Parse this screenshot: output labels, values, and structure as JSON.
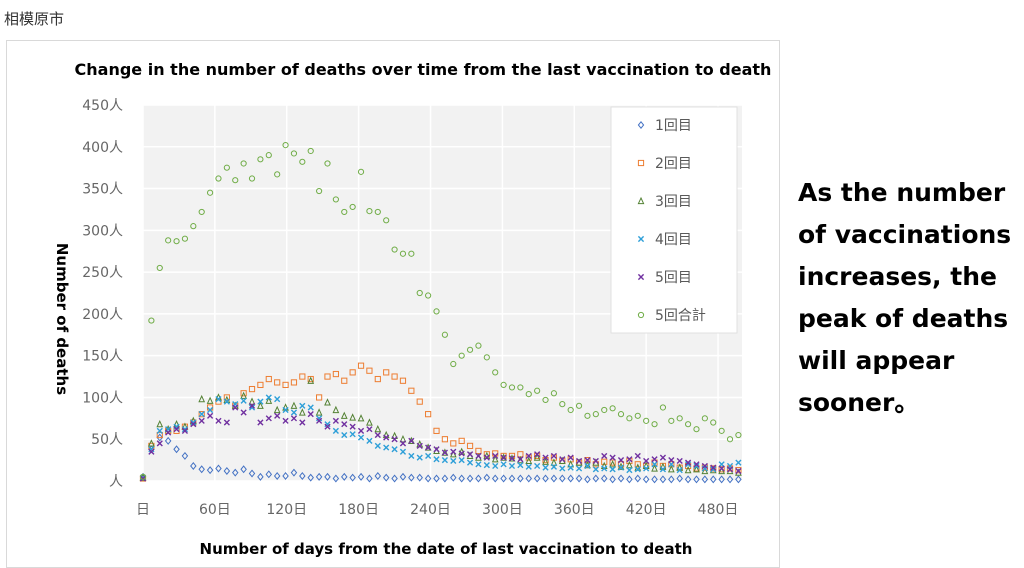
{
  "source_label": "相模原市",
  "note_lines": [
    "As the number",
    "of vaccinations",
    "increases, the",
    "peak of deaths",
    "will appear",
    "sooner。"
  ],
  "chart_data": {
    "type": "scatter",
    "title": "Change in the number of deaths over time from the last vaccination to death",
    "xlabel": "Number of days from the date of last vaccination to death",
    "ylabel": "Number of deaths",
    "xlim": [
      0,
      500
    ],
    "ylim": [
      0,
      450
    ],
    "grid": true,
    "legend_position": "top-right",
    "x_ticks": [
      0,
      60,
      120,
      180,
      240,
      300,
      360,
      420,
      480
    ],
    "x_tick_labels": [
      "日",
      "60日",
      "120日",
      "180日",
      "240日",
      "300日",
      "360日",
      "420日",
      "480日"
    ],
    "y_ticks": [
      0,
      50,
      100,
      150,
      200,
      250,
      300,
      350,
      400,
      450
    ],
    "y_tick_labels": [
      "人",
      "50人",
      "100人",
      "150人",
      "200人",
      "250人",
      "300人",
      "350人",
      "400人",
      "450人"
    ],
    "x": [
      0,
      7,
      14,
      21,
      28,
      35,
      42,
      49,
      56,
      63,
      70,
      77,
      84,
      91,
      98,
      105,
      112,
      119,
      126,
      133,
      140,
      147,
      154,
      161,
      168,
      175,
      182,
      189,
      196,
      203,
      210,
      217,
      224,
      231,
      238,
      245,
      252,
      259,
      266,
      273,
      280,
      287,
      294,
      301,
      308,
      315,
      322,
      329,
      336,
      343,
      350,
      357,
      364,
      371,
      378,
      385,
      392,
      399,
      406,
      413,
      420,
      427,
      434,
      441,
      448,
      455,
      462,
      469,
      476,
      483,
      490,
      497
    ],
    "series": [
      {
        "name": "1回目",
        "marker": "diamond",
        "color": "#4472c4",
        "values": [
          5,
          38,
          52,
          48,
          38,
          30,
          18,
          14,
          13,
          15,
          12,
          10,
          14,
          9,
          5,
          8,
          6,
          6,
          10,
          6,
          4,
          5,
          5,
          3,
          5,
          4,
          5,
          3,
          6,
          4,
          3,
          5,
          4,
          4,
          3,
          3,
          3,
          4,
          3,
          3,
          3,
          4,
          3,
          3,
          3,
          3,
          3,
          3,
          3,
          3,
          3,
          3,
          3,
          2,
          3,
          3,
          2,
          3,
          2,
          3,
          2,
          2,
          2,
          2,
          3,
          2,
          2,
          2,
          2,
          2,
          2,
          2
        ]
      },
      {
        "name": "2回目",
        "marker": "square",
        "color": "#ed7d31",
        "values": [
          3,
          42,
          55,
          60,
          60,
          65,
          70,
          80,
          88,
          95,
          100,
          90,
          105,
          110,
          115,
          122,
          118,
          115,
          118,
          125,
          122,
          100,
          125,
          128,
          120,
          130,
          138,
          132,
          122,
          130,
          125,
          120,
          108,
          95,
          80,
          60,
          50,
          45,
          48,
          42,
          36,
          32,
          33,
          30,
          30,
          32,
          28,
          30,
          25,
          28,
          24,
          26,
          22,
          25,
          20,
          23,
          22,
          20,
          24,
          20,
          18,
          22,
          18,
          20,
          16,
          18,
          15,
          16,
          15,
          14,
          15,
          13
        ]
      },
      {
        "name": "3回目",
        "marker": "triangle",
        "color": "#548235",
        "values": [
          4,
          45,
          68,
          62,
          68,
          65,
          72,
          98,
          96,
          100,
          97,
          90,
          102,
          95,
          90,
          96,
          85,
          88,
          90,
          82,
          120,
          82,
          94,
          85,
          78,
          76,
          75,
          70,
          62,
          55,
          54,
          50,
          48,
          44,
          40,
          36,
          34,
          32,
          35,
          30,
          28,
          30,
          26,
          28,
          27,
          25,
          24,
          28,
          23,
          22,
          24,
          20,
          22,
          19,
          22,
          18,
          20,
          17,
          19,
          16,
          18,
          15,
          17,
          14,
          16,
          13,
          14,
          12,
          13,
          12,
          12,
          10
        ]
      },
      {
        "name": "4回目",
        "marker": "x",
        "color": "#2e9fd8",
        "values": [
          4,
          38,
          60,
          62,
          65,
          62,
          70,
          80,
          85,
          98,
          95,
          92,
          96,
          88,
          95,
          100,
          98,
          85,
          82,
          90,
          88,
          75,
          68,
          60,
          55,
          56,
          52,
          48,
          42,
          40,
          38,
          35,
          30,
          28,
          30,
          26,
          25,
          24,
          25,
          22,
          20,
          19,
          18,
          20,
          18,
          19,
          17,
          18,
          16,
          17,
          15,
          16,
          15,
          18,
          14,
          15,
          14,
          16,
          13,
          14,
          15,
          20,
          14,
          20,
          13,
          20,
          18,
          15,
          14,
          20,
          18,
          22
        ]
      },
      {
        "name": "5回目",
        "marker": "x",
        "color": "#7030a0",
        "values": [
          3,
          35,
          45,
          58,
          62,
          60,
          68,
          72,
          78,
          72,
          70,
          88,
          82,
          90,
          70,
          75,
          78,
          72,
          75,
          70,
          80,
          72,
          65,
          72,
          68,
          65,
          60,
          62,
          55,
          52,
          50,
          45,
          48,
          42,
          40,
          38,
          34,
          35,
          33,
          32,
          30,
          28,
          30,
          28,
          27,
          26,
          30,
          32,
          28,
          30,
          26,
          28,
          24,
          25,
          24,
          30,
          28,
          25,
          26,
          30,
          24,
          26,
          28,
          25,
          24,
          22,
          20,
          18,
          16,
          15,
          14,
          12
        ]
      },
      {
        "name": "5回合計",
        "marker": "circle",
        "color": "#70ad47",
        "values": [
          5,
          192,
          255,
          288,
          287,
          290,
          305,
          322,
          345,
          362,
          375,
          360,
          380,
          362,
          385,
          390,
          367,
          402,
          392,
          382,
          395,
          347,
          380,
          337,
          322,
          328,
          370,
          323,
          322,
          312,
          277,
          272,
          272,
          225,
          222,
          203,
          175,
          140,
          150,
          157,
          162,
          148,
          130,
          115,
          112,
          112,
          104,
          108,
          97,
          105,
          92,
          85,
          90,
          78,
          80,
          85,
          87,
          80,
          75,
          78,
          72,
          68,
          88,
          72,
          75,
          68,
          62,
          75,
          70,
          60,
          50,
          55
        ]
      }
    ]
  }
}
